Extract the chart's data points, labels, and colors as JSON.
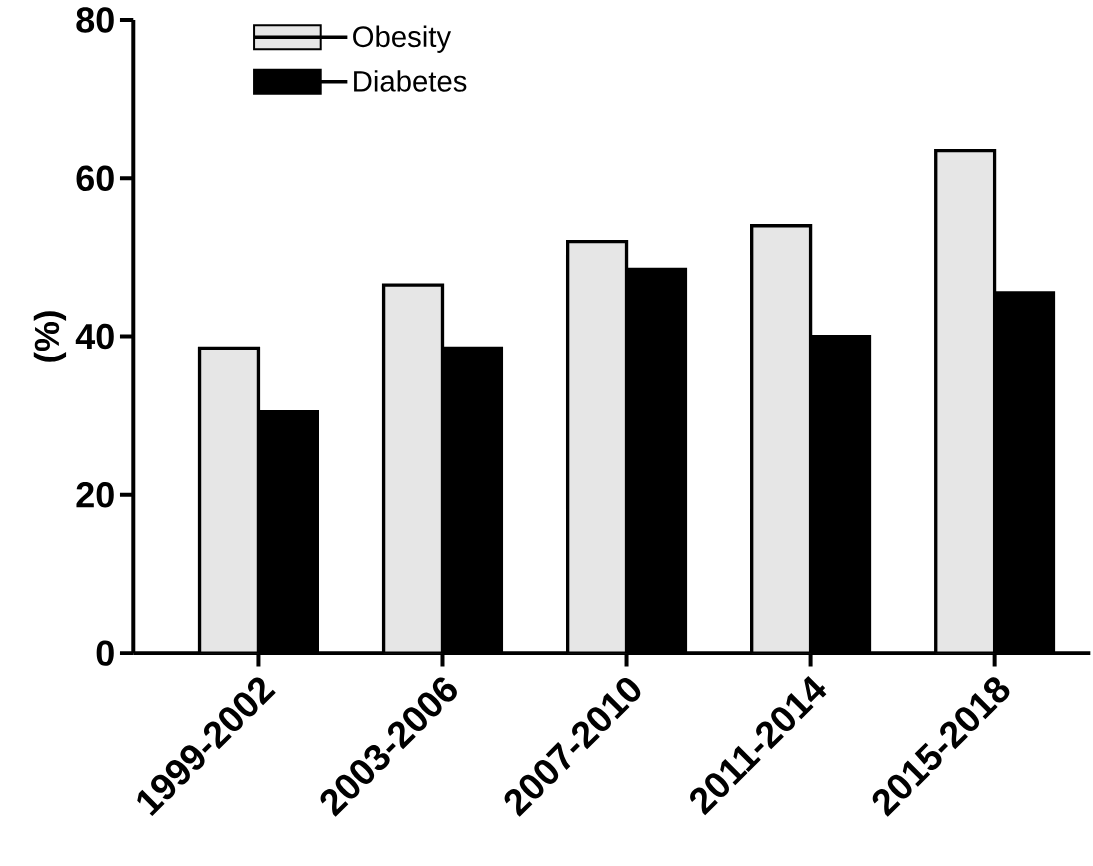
{
  "chart_data": {
    "type": "bar",
    "ylabel": "(%)",
    "categories": [
      "1999-2002",
      "2003-2006",
      "2007-2010",
      "2011-2014",
      "2015-2018"
    ],
    "series": [
      {
        "name": "Obesity",
        "color": "#e6e6e6",
        "values": [
          38.5,
          46.5,
          52,
          54,
          63.5
        ]
      },
      {
        "name": "Diabetes",
        "color": "#000000",
        "values": [
          30.5,
          38.5,
          48.5,
          40,
          45.5
        ]
      }
    ],
    "ylim": [
      0,
      80
    ],
    "yticks": [
      0,
      20,
      40,
      60,
      80
    ],
    "legend": "top left",
    "grid": false
  }
}
